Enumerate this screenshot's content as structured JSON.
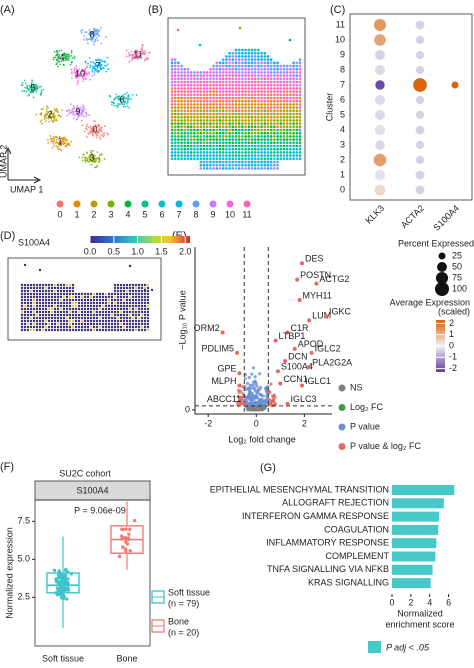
{
  "panel_labels": [
    "(A)",
    "(B)",
    "(C)",
    "(D)",
    "(E)",
    "(F)",
    "(G)"
  ],
  "umap": {
    "xlabel": "UMAP 1",
    "ylabel": "UMAP 2",
    "clusters": [
      "0",
      "1",
      "2",
      "3",
      "4",
      "5",
      "6",
      "7",
      "8",
      "9",
      "10",
      "11"
    ],
    "colors": [
      "#F8766D",
      "#DE8C00",
      "#B79F00",
      "#7CAE00",
      "#00BA38",
      "#00C08B",
      "#00BFC4",
      "#00B4F0",
      "#619CFF",
      "#C77CFF",
      "#F564E3",
      "#FF64B0"
    ]
  },
  "dotplot": {
    "ylabel": "Cluster",
    "genes": [
      "KLK3",
      "ACTA2",
      "S100A4"
    ],
    "clusters": [
      "0",
      "1",
      "2",
      "3",
      "4",
      "5",
      "6",
      "7",
      "8",
      "9",
      "10",
      "11"
    ],
    "pct": [
      [
        60,
        55,
        80,
        50,
        55,
        50,
        50,
        45,
        50,
        50,
        70,
        75
      ],
      [
        40,
        40,
        35,
        35,
        40,
        35,
        35,
        95,
        35,
        35,
        35,
        40
      ],
      [
        0,
        0,
        0,
        0,
        0,
        0,
        0,
        25,
        0,
        0,
        0,
        0
      ]
    ],
    "avg": [
      [
        0.4,
        -0.2,
        1.3,
        -0.3,
        -0.2,
        -0.3,
        -0.3,
        -2.1,
        -0.3,
        -0.4,
        1.2,
        1.4
      ],
      [
        -0.4,
        -0.4,
        -0.4,
        -0.4,
        -0.4,
        -0.4,
        -0.4,
        2.2,
        -0.4,
        -0.4,
        -0.4,
        -0.4
      ],
      [
        0,
        0,
        0,
        0,
        0,
        0,
        0,
        2.2,
        0,
        0,
        0,
        0
      ]
    ],
    "size_title": "Percent Expressed",
    "size_ticks": [
      25,
      50,
      75,
      100
    ],
    "color_title": "Average Expression",
    "color_subtitle": "(scaled)",
    "color_ticks": [
      2,
      1,
      0,
      -1,
      -2
    ],
    "color_lim": [
      -2.3,
      2.3
    ]
  },
  "feature": {
    "title": "S100A4",
    "lim": [
      0,
      2.1
    ],
    "ticks": [
      {
        "value": 0,
        "label": "0.0"
      },
      0.5,
      {
        "value": 1,
        "label": "1.0"
      },
      1.5,
      {
        "value": 2,
        "label": "2.0"
      }
    ]
  },
  "volcano": {
    "xlabel": "Log₂ fold change",
    "ylabel": "−Log₁₀ P value",
    "xlim": [
      -2.55,
      3.15
    ],
    "ylim": [
      -1,
      40
    ],
    "xticks": [
      -2,
      0,
      2
    ],
    "yticks": [
      0
    ],
    "fc_cutoff": 0.5,
    "p_cutoff": 1,
    "genes": [
      {
        "name": "DES",
        "x": 1.9,
        "y": 36
      },
      {
        "name": "POSTN",
        "x": 1.7,
        "y": 32
      },
      {
        "name": "ACTG2",
        "x": 2.5,
        "y": 31
      },
      {
        "name": "MYH11",
        "x": 1.8,
        "y": 27
      },
      {
        "name": "LUM",
        "x": 2.2,
        "y": 22
      },
      {
        "name": "IGKC",
        "x": 2.9,
        "y": 23
      },
      {
        "name": "C1R",
        "x": 1.3,
        "y": 19
      },
      {
        "name": "LTBP1",
        "x": 0.8,
        "y": 17
      },
      {
        "name": "APOD",
        "x": 1.6,
        "y": 15
      },
      {
        "name": "DCN",
        "x": 1.2,
        "y": 12
      },
      {
        "name": "S100A4",
        "x": 0.9,
        "y": 9.5
      },
      {
        "name": "CCN1",
        "x": 1.0,
        "y": 6.5
      },
      {
        "name": "IGLC2",
        "x": 2.3,
        "y": 14
      },
      {
        "name": "PLA2G2A",
        "x": 2.2,
        "y": 10.5
      },
      {
        "name": "IGLC1",
        "x": 1.9,
        "y": 6
      },
      {
        "name": "IGLC3",
        "x": 1.3,
        "y": 1.5
      },
      {
        "name": "ORM2",
        "x": -1.4,
        "y": 19
      },
      {
        "name": "PDLIM5",
        "x": -0.8,
        "y": 14
      },
      {
        "name": "GPE",
        "x": -0.7,
        "y": 9
      },
      {
        "name": "MLPH",
        "x": -0.7,
        "y": 6
      },
      {
        "name": "ABCC11",
        "x": -0.5,
        "y": 1.5
      }
    ],
    "legend": [
      {
        "name": "NS",
        "color": "#7F7F7F"
      },
      {
        "name": "Log₂ FC",
        "color": "#3E9D4A"
      },
      {
        "name": "P value",
        "color": "#6A8FD8"
      },
      {
        "name": "P value & log₂ FC",
        "color": "#E8675E"
      }
    ]
  },
  "boxplot": {
    "title": "SU2C cohort",
    "strip": "S100A4",
    "annotation": "P = 9.06e-09",
    "ylabel": "Normalized expression",
    "ylim": [
      -0.7,
      8.9
    ],
    "yticks": [
      2.5,
      {
        "value": 5,
        "label": "5.0"
      },
      7.5
    ],
    "groups": [
      {
        "name": "Soft tissue",
        "n": "(n = 79)",
        "color": "#3CC4CC",
        "min": 0.5,
        "q1": 2.8,
        "median": 3.3,
        "q3": 4.1,
        "max": 6.5
      },
      {
        "name": "Bone",
        "n": "(n = 20)",
        "color": "#F07C74",
        "min": 4.3,
        "q1": 5.4,
        "median": 6.3,
        "q3": 7.2,
        "max": 8.8
      }
    ]
  },
  "enrichment": {
    "pathways": [
      "EPITHELIAL MESENCHYMAL TRANSITION",
      "ALLOGRAFT REJECTION",
      "INTERFERON GAMMA RESPONSE",
      "COAGULATION",
      "INFLAMMATORY RESPONSE",
      "COMPLEMENT",
      "TNFA SIGNALLING VIA NFKB",
      "KRAS SIGNALLING"
    ],
    "values": [
      6.6,
      5.5,
      5.0,
      4.9,
      4.7,
      4.6,
      4.3,
      4.1
    ],
    "color": "#48C8C8",
    "xlim": [
      0,
      7
    ],
    "xticks": [
      0,
      2,
      4,
      6
    ],
    "xlabel": [
      "Normalized",
      "enrichment score"
    ],
    "legend": "P adj < .05"
  }
}
